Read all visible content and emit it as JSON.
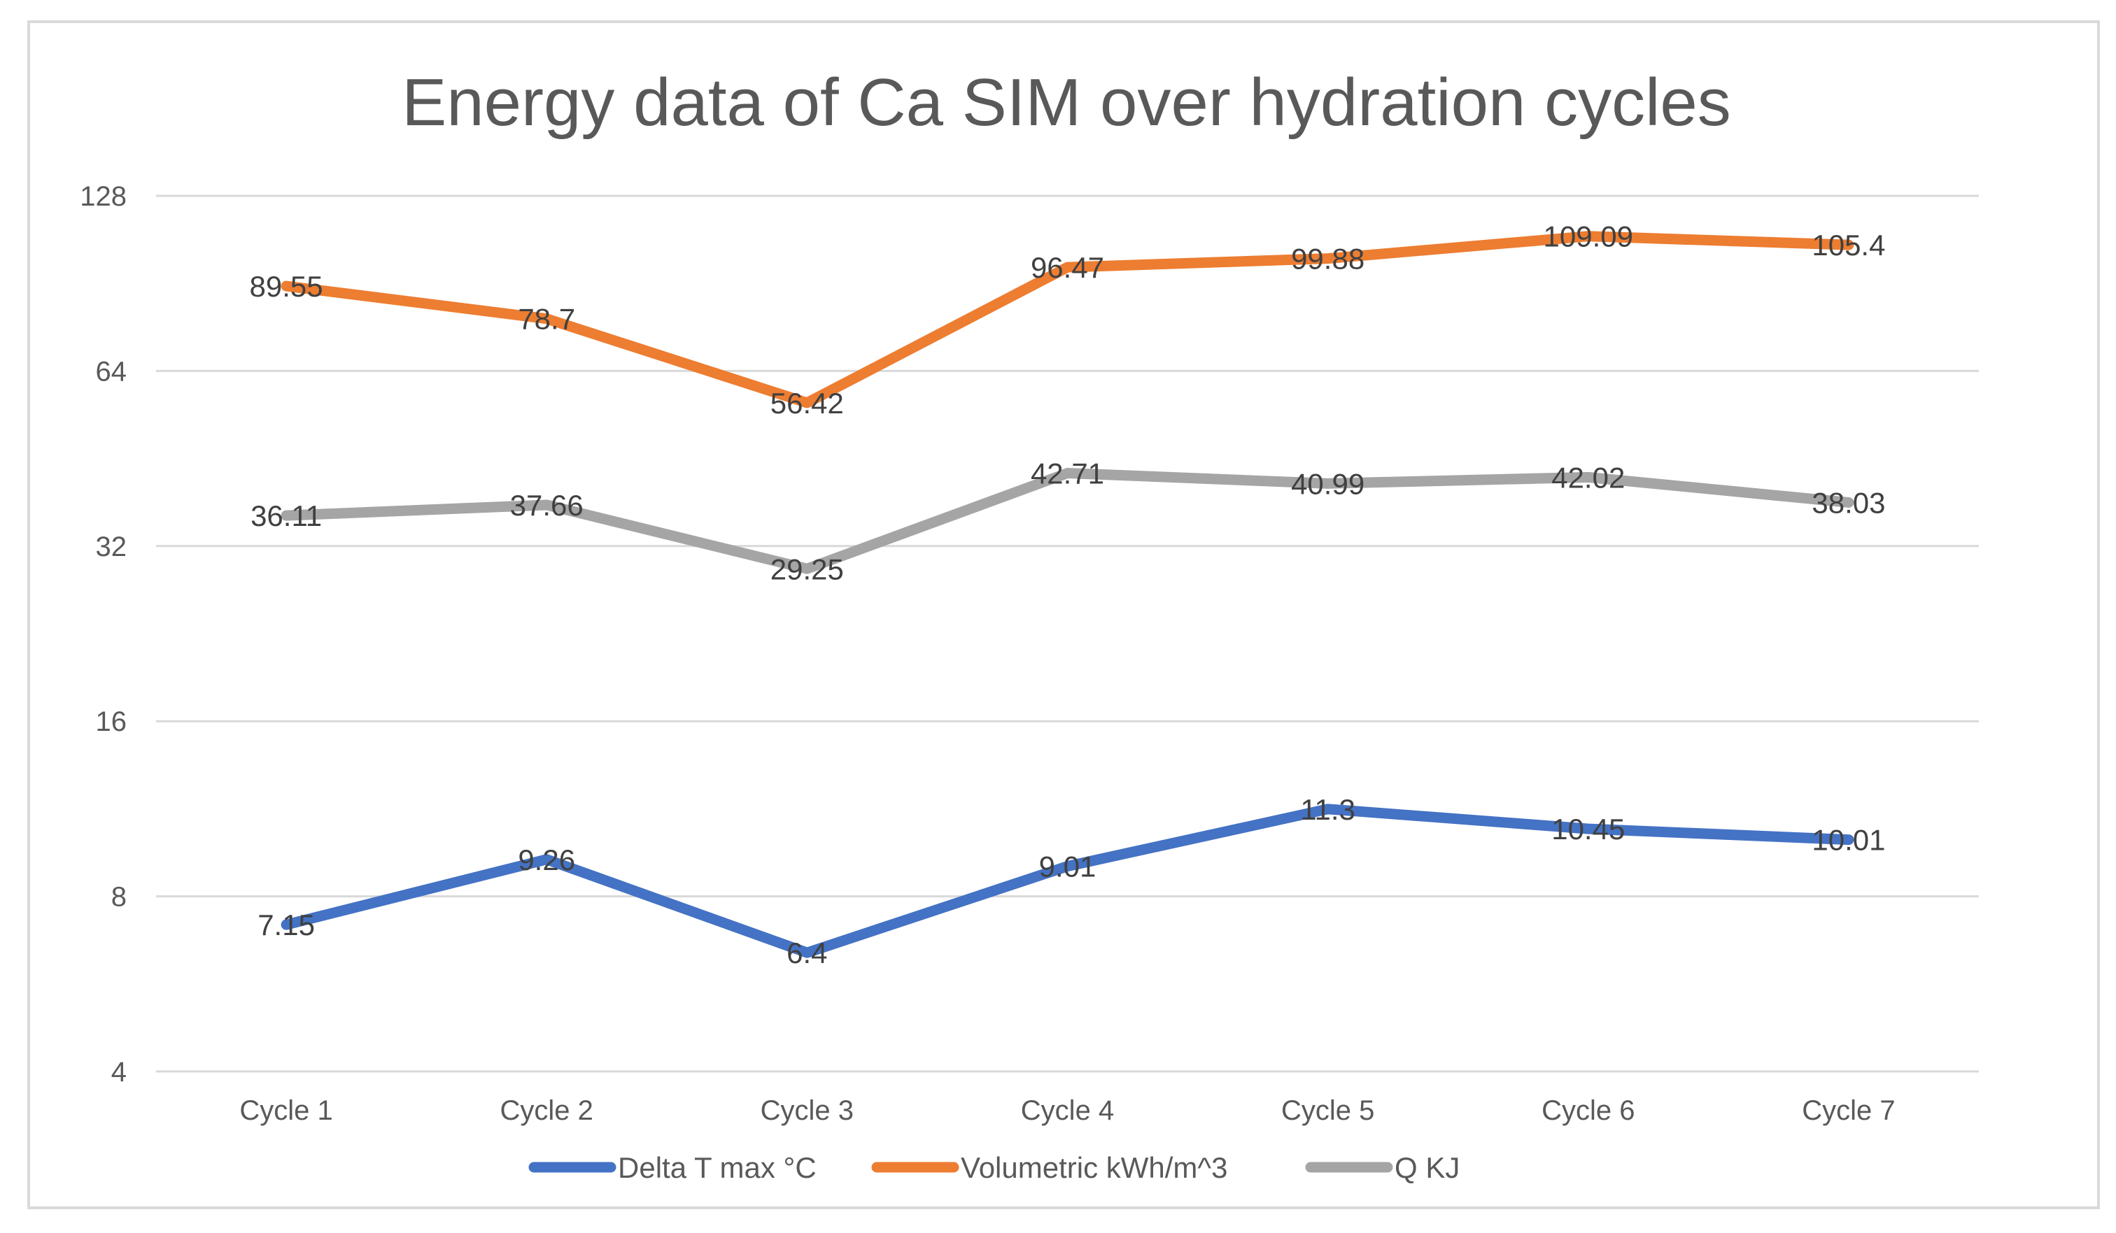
{
  "chart_data": {
    "type": "line",
    "title": "Energy data of Ca SIM over hydration cycles",
    "xlabel": "",
    "ylabel": "",
    "yscale": "log2",
    "ylim": [
      4,
      128
    ],
    "yticks": [
      "4",
      "8",
      "16",
      "32",
      "64",
      "128"
    ],
    "grid": true,
    "legend_position": "bottom",
    "categories": [
      "Cycle 1",
      "Cycle 2",
      "Cycle 3",
      "Cycle 4",
      "Cycle 5",
      "Cycle 6",
      "Cycle 7"
    ],
    "series": [
      {
        "name": "Delta T max °C",
        "color": "#4472c4",
        "values": [
          7.15,
          9.26,
          6.4,
          9.01,
          11.3,
          10.45,
          10.01
        ],
        "labels": [
          "7.15",
          "9.26",
          "6.4",
          "9.01",
          "11.3",
          "10.45",
          "10.01"
        ]
      },
      {
        "name": "Volumetric kWh/m^3",
        "color": "#ed7d31",
        "values": [
          89.55,
          78.7,
          56.42,
          96.47,
          99.88,
          109.09,
          105.4
        ],
        "labels": [
          "89.55",
          "78.7",
          "56.42",
          "96.47",
          "99.88",
          "109.09",
          "105.4"
        ]
      },
      {
        "name": "Q KJ",
        "color": "#a5a5a5",
        "values": [
          36.11,
          37.66,
          29.25,
          42.71,
          40.99,
          42.02,
          38.03
        ],
        "labels": [
          "36.11",
          "37.66",
          "29.25",
          "42.71",
          "40.99",
          "42.02",
          "38.03"
        ]
      }
    ]
  }
}
